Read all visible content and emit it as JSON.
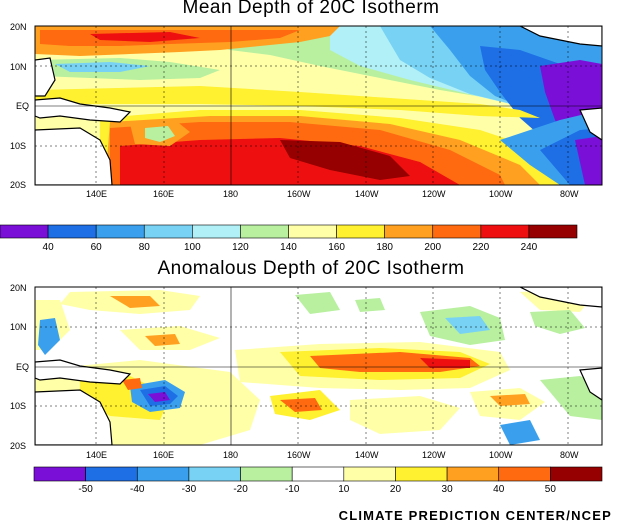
{
  "panels": [
    {
      "title": "Mean Depth of 20C Isotherm",
      "lat_labels": [
        "20N",
        "10N",
        "EQ",
        "10S",
        "20S"
      ],
      "lon_labels": [
        "140E",
        "160E",
        "180",
        "160W",
        "140W",
        "120W",
        "100W",
        "80W"
      ],
      "colorbar": {
        "labels": [
          "40",
          "60",
          "80",
          "100",
          "120",
          "140",
          "160",
          "180",
          "200",
          "220",
          "240"
        ],
        "colors": [
          "#7a10d8",
          "#1e6fe6",
          "#3aa0ee",
          "#78d2f4",
          "#b0f0f6",
          "#b8f0a0",
          "#ffffa8",
          "#fff030",
          "#ffa020",
          "#ff6a10",
          "#ee1010",
          "#960000"
        ]
      }
    },
    {
      "title": "Anomalous Depth of 20C Isotherm",
      "lat_labels": [
        "20N",
        "10N",
        "EQ",
        "10S",
        "20S"
      ],
      "lon_labels": [
        "140E",
        "160E",
        "180",
        "160W",
        "140W",
        "120W",
        "100W",
        "80W"
      ],
      "colorbar": {
        "labels": [
          "-50",
          "-40",
          "-30",
          "-20",
          "-10",
          "10",
          "20",
          "30",
          "40",
          "50"
        ],
        "colors": [
          "#7a10d8",
          "#1e6fe6",
          "#3aa0ee",
          "#78d2f4",
          "#b8f0a0",
          "#ffffff",
          "#ffffa8",
          "#fff030",
          "#ffa020",
          "#ff6a10",
          "#960000"
        ]
      }
    }
  ],
  "credit": "CLIMATE PREDICTION CENTER/NCEP"
}
